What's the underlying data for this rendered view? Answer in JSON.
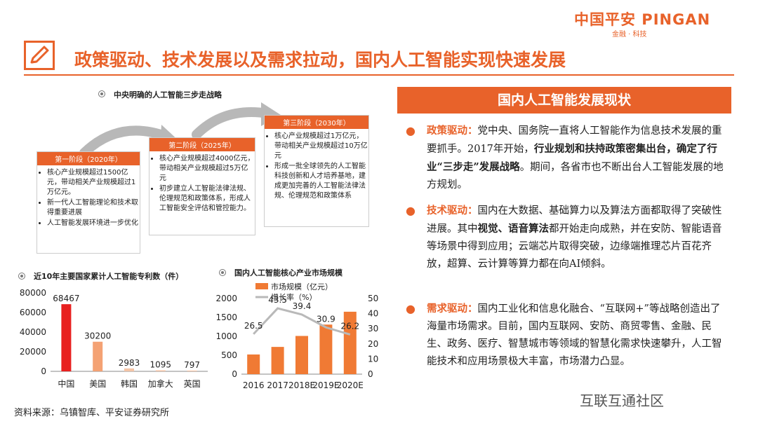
{
  "brand": {
    "name": "中国平安 PINGAN",
    "tagline": "金融 · 科技"
  },
  "title": "政策驱动、技术发展以及需求拉动，国内人工智能实现快速发展",
  "strategy": {
    "label": "中央明确的人工智能三步走战略",
    "stages": [
      {
        "head": "第一阶段（2020年）",
        "items": [
          "核心产业规模超过1500亿元，带动相关产业规模超过1万亿元。",
          "新一代人工智能理论和技术取得重要进展",
          "人工智能发展环境进一步优化"
        ]
      },
      {
        "head": "第二阶段（2025年）",
        "items": [
          "核心产业规模超过4000亿元，带动相关产业规模超过5万亿元",
          "初步建立人工智能法律法规、伦理规范和政策体系，形成人工智能安全评估和管控能力。"
        ]
      },
      {
        "head": "第三阶段（2030年）",
        "items": [
          "核心产业规模超过1万亿元，带动相关产业规模超过10万亿元",
          "形成一批全球领先的人工智能科技创新和人才培养基地，建成更加完善的人工智能法律法规、伦理规范和政策体系"
        ]
      }
    ]
  },
  "panel": {
    "head": "国内人工智能发展现状",
    "paras": [
      {
        "kw": "政策驱动：",
        "t1": "党中央、国务院一直将人工智能作为信息技术发展的重要抓手。2017年开始，",
        "b1": "行业规划和扶持政策密集出台，确定了行业“三步走”发展战略",
        "t2": "。期间，各省市也不断出台人工智能发展的地方规划。"
      },
      {
        "kw": "技术驱动：",
        "t1": "国内在大数据、基础算力以及算法方面都取得了突破性进展。其中",
        "b1": "视觉、语音算法",
        "t2": "都开始走向成熟，并在安防、智能语音等场景中得到应用；云端芯片取得突破，边缘端推理芯片百花齐放，超算、云计算等算力都在向AI倾斜。"
      },
      {
        "kw": "需求驱动：",
        "t1": "国内工业化和信息化融合、“互联网+”等战略创造出了海量市场需求。目前，国内互联网、安防、商贸零售、金融、民生、政务、医疗、智慧城市等领域的智慧化需求快速攀升，人工智能技术和应用场景极大丰富，市场潜力凸显。",
        "b1": "",
        "t2": ""
      }
    ]
  },
  "source": "资料来源：乌镇智库、平安证券研究所",
  "watermark": "互联互通社区",
  "chart_data": [
    {
      "type": "bar",
      "title": "近10年主要国家累计人工智能专利数（件）",
      "categories": [
        "中国",
        "美国",
        "韩国",
        "加拿大",
        "英国"
      ],
      "values": [
        68467,
        30200,
        2983,
        1095,
        797
      ],
      "ylim": [
        0,
        80000
      ],
      "yticks": [
        0,
        20000,
        40000,
        60000,
        80000
      ],
      "colors": {
        "first": "#e8201f",
        "second": "#f4a274",
        "rest": "#f4c4a6"
      },
      "grid": false
    },
    {
      "type": "bar",
      "title": "国内人工智能核心产业市场规模",
      "categories": [
        "2016",
        "2017",
        "2018E",
        "2019E",
        "2020E"
      ],
      "series": [
        {
          "name": "市场规模（亿元）",
          "type": "bar",
          "axis": "left",
          "values": [
            520,
            720,
            1010,
            1310,
            1650
          ],
          "color": "#f07a34"
        },
        {
          "name": "增长率（%）",
          "type": "line",
          "axis": "right",
          "values": [
            26.5,
            43.5,
            39.4,
            30.9,
            26.2
          ],
          "color": "#b9b9b9"
        }
      ],
      "ylim_left": [
        0,
        2000
      ],
      "yticks_left": [
        0,
        500,
        1000,
        1500,
        2000
      ],
      "ylim_right": [
        0,
        50
      ],
      "yticks_right": [
        0,
        10,
        20,
        30,
        40,
        50
      ],
      "legend": "top-left",
      "grid": false
    }
  ]
}
